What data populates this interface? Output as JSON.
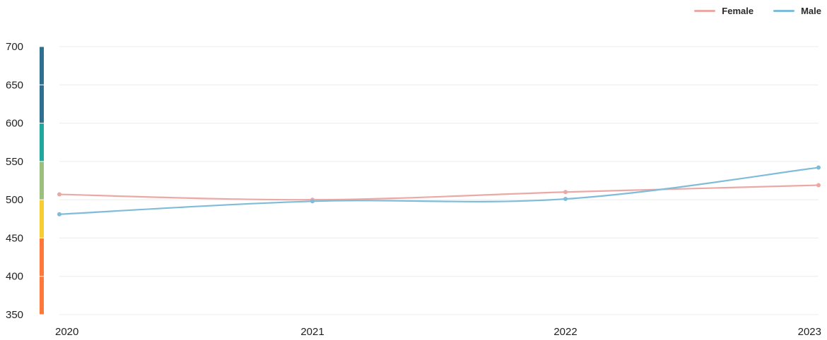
{
  "chart_data": {
    "type": "line",
    "x": [
      "2020",
      "2021",
      "2022",
      "2023"
    ],
    "series": [
      {
        "name": "Female",
        "color": "#eba9a6",
        "values": [
          507,
          500,
          510,
          519
        ]
      },
      {
        "name": "Male",
        "color": "#7fbcd9",
        "values": [
          481,
          498,
          501,
          542
        ]
      }
    ],
    "ylim": [
      350,
      700
    ],
    "yticks": [
      700,
      650,
      600,
      550,
      500,
      450,
      400,
      350
    ],
    "grid": true,
    "legend_position": "top-right",
    "color_bands": [
      {
        "from": 650,
        "to": 700,
        "color": "#2f6f8f"
      },
      {
        "from": 600,
        "to": 650,
        "color": "#2f6f8f"
      },
      {
        "from": 550,
        "to": 600,
        "color": "#21a89a"
      },
      {
        "from": 500,
        "to": 550,
        "color": "#9bbf7c"
      },
      {
        "from": 450,
        "to": 500,
        "color": "#f7cd33"
      },
      {
        "from": 400,
        "to": 450,
        "color": "#ff773a"
      },
      {
        "from": 350,
        "to": 400,
        "color": "#ff773a"
      }
    ]
  }
}
